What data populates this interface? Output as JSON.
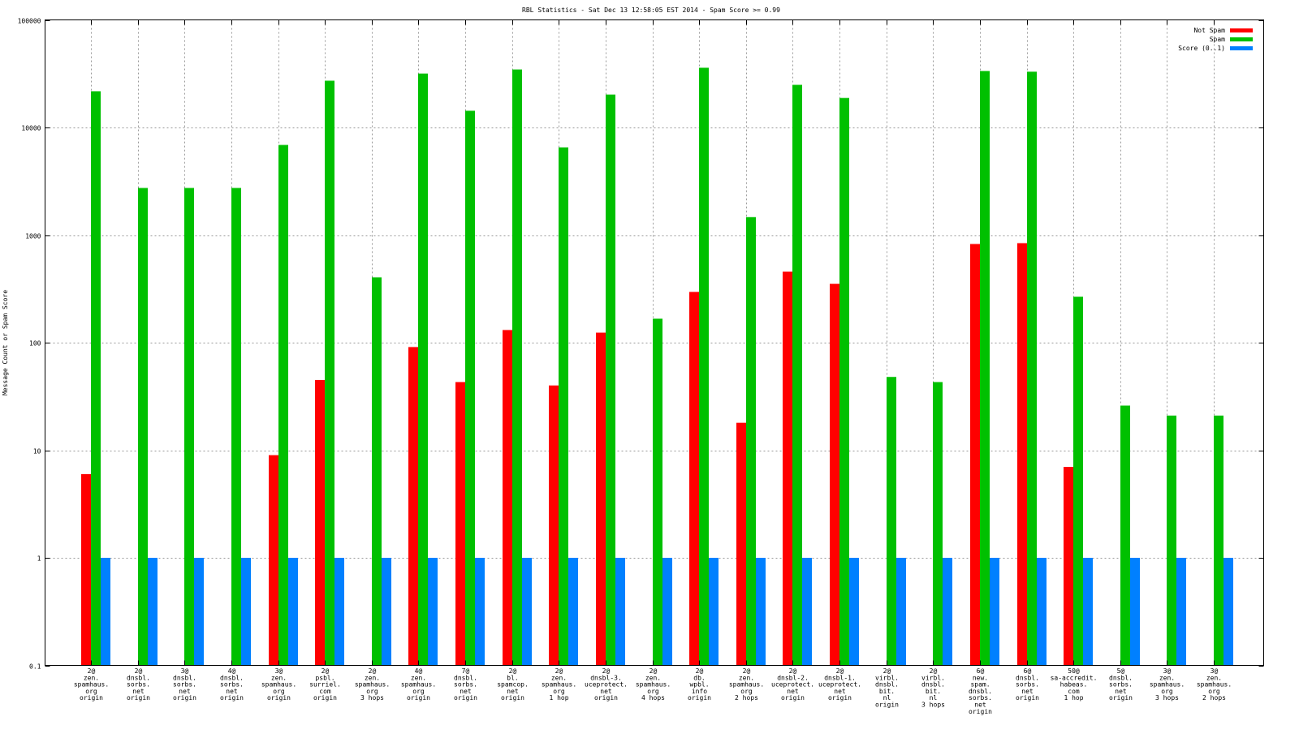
{
  "chart_data": {
    "type": "bar",
    "title": "RBL Statistics - Sat Dec 13 12:58:05 EST 2014 - Spam Score >= 0.99",
    "xlabel": "",
    "ylabel": "Message Count or Spam Score",
    "yscale": "log",
    "ylim": [
      0.1,
      100000
    ],
    "yticks": [
      "0.1",
      "1",
      "10",
      "100",
      "1000",
      "10000",
      "100000"
    ],
    "yticks_values": [
      0.1,
      1,
      10,
      100,
      1000,
      10000,
      100000
    ],
    "grid": true,
    "legend_position": "top-right",
    "categories": [
      [
        "2@",
        "zen.",
        "spamhaus.",
        "org",
        "origin"
      ],
      [
        "2@",
        "dnsbl.",
        "sorbs.",
        "net",
        "origin"
      ],
      [
        "3@",
        "dnsbl.",
        "sorbs.",
        "net",
        "origin"
      ],
      [
        "4@",
        "dnsbl.",
        "sorbs.",
        "net",
        "origin"
      ],
      [
        "3@",
        "zen.",
        "spamhaus.",
        "org",
        "origin"
      ],
      [
        "2@",
        "psbl.",
        "surriel.",
        "com",
        "origin"
      ],
      [
        "2@",
        "zen.",
        "spamhaus.",
        "org",
        "3 hops"
      ],
      [
        "4@",
        "zen.",
        "spamhaus.",
        "org",
        "origin"
      ],
      [
        "7@",
        "dnsbl.",
        "sorbs.",
        "net",
        "origin"
      ],
      [
        "2@",
        "bl.",
        "spamcop.",
        "net",
        "origin"
      ],
      [
        "2@",
        "zen.",
        "spamhaus.",
        "org",
        "1 hop"
      ],
      [
        "2@",
        "dnsbl-3.",
        "uceprotect.",
        "net",
        "origin"
      ],
      [
        "2@",
        "zen.",
        "spamhaus.",
        "org",
        "4 hops"
      ],
      [
        "2@",
        "db.",
        "wpbl.",
        "info",
        "origin"
      ],
      [
        "2@",
        "zen.",
        "spamhaus.",
        "org",
        "2 hops"
      ],
      [
        "2@",
        "dnsbl-2.",
        "uceprotect.",
        "net",
        "origin"
      ],
      [
        "2@",
        "dnsbl-1.",
        "uceprotect.",
        "net",
        "origin"
      ],
      [
        "2@",
        "virbl.",
        "dnsbl.",
        "bit.",
        "nl",
        "origin"
      ],
      [
        "2@",
        "virbl.",
        "dnsbl.",
        "bit.",
        "nl",
        "3 hops"
      ],
      [
        "6@",
        "new.",
        "spam.",
        "dnsbl.",
        "sorbs.",
        "net",
        "origin"
      ],
      [
        "6@",
        "dnsbl.",
        "sorbs.",
        "net",
        "origin"
      ],
      [
        "50@",
        "sa-accredit.",
        "habeas.",
        "com",
        "1 hop"
      ],
      [
        "5@",
        "dnsbl.",
        "sorbs.",
        "net",
        "origin"
      ],
      [
        "3@",
        "zen.",
        "spamhaus.",
        "org",
        "3 hops"
      ],
      [
        "3@",
        "zen.",
        "spamhaus.",
        "org",
        "2 hops"
      ]
    ],
    "series": [
      {
        "name": "Not Spam",
        "color": "#ff0000",
        "values": [
          6,
          null,
          null,
          null,
          9,
          45,
          null,
          91,
          43,
          131,
          40,
          124,
          null,
          296,
          18,
          457,
          352,
          null,
          null,
          826,
          841,
          7,
          null,
          null,
          null
        ]
      },
      {
        "name": "Spam",
        "color": "#00c000",
        "values": [
          21700,
          2740,
          2740,
          2740,
          6880,
          27200,
          405,
          31700,
          14300,
          34600,
          6530,
          20200,
          167,
          35900,
          1470,
          24900,
          18800,
          48,
          43,
          33500,
          33000,
          267,
          26,
          21,
          21
        ]
      },
      {
        "name": "Score (0..1)",
        "color": "#0080ff",
        "values": [
          1,
          1,
          1,
          1,
          1,
          1,
          1,
          1,
          1,
          1,
          1,
          1,
          1,
          1,
          1,
          1,
          1,
          1,
          1,
          1,
          1,
          1,
          1,
          1,
          1
        ]
      }
    ]
  }
}
